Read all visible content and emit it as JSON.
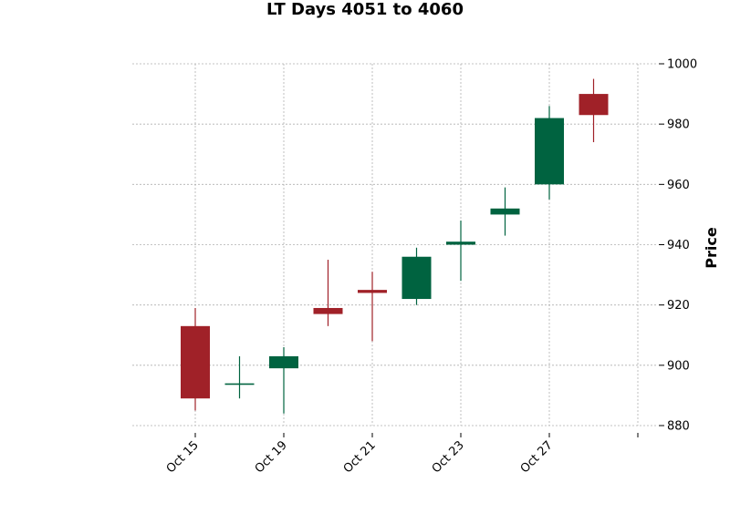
{
  "chart_data": {
    "type": "candlestick",
    "title": "LT Days 4051 to 4060",
    "xlabel": "",
    "ylabel": "Price",
    "ylim": [
      880,
      1000
    ],
    "yticks": [
      880,
      900,
      920,
      940,
      960,
      980,
      1000
    ],
    "xtick_labels": [
      "Oct 15",
      "Oct 19",
      "Oct 21",
      "Oct 23",
      "Oct 27",
      ""
    ],
    "grid": true,
    "colors": {
      "up": "#006340",
      "down": "#a02128",
      "grid": "#b0b0b0"
    },
    "candles": [
      {
        "open": 913,
        "high": 919,
        "low": 885,
        "close": 889
      },
      {
        "open": 894,
        "high": 903,
        "low": 889,
        "close": 894
      },
      {
        "open": 899,
        "high": 906,
        "low": 884,
        "close": 903
      },
      {
        "open": 919,
        "high": 935,
        "low": 913,
        "close": 917
      },
      {
        "open": 925,
        "high": 931,
        "low": 908,
        "close": 924
      },
      {
        "open": 922,
        "high": 939,
        "low": 920,
        "close": 936
      },
      {
        "open": 940,
        "high": 948,
        "low": 928,
        "close": 941
      },
      {
        "open": 950,
        "high": 959,
        "low": 943,
        "close": 952
      },
      {
        "open": 960,
        "high": 986,
        "low": 955,
        "close": 982
      },
      {
        "open": 990,
        "high": 995,
        "low": 974,
        "close": 983
      }
    ]
  }
}
